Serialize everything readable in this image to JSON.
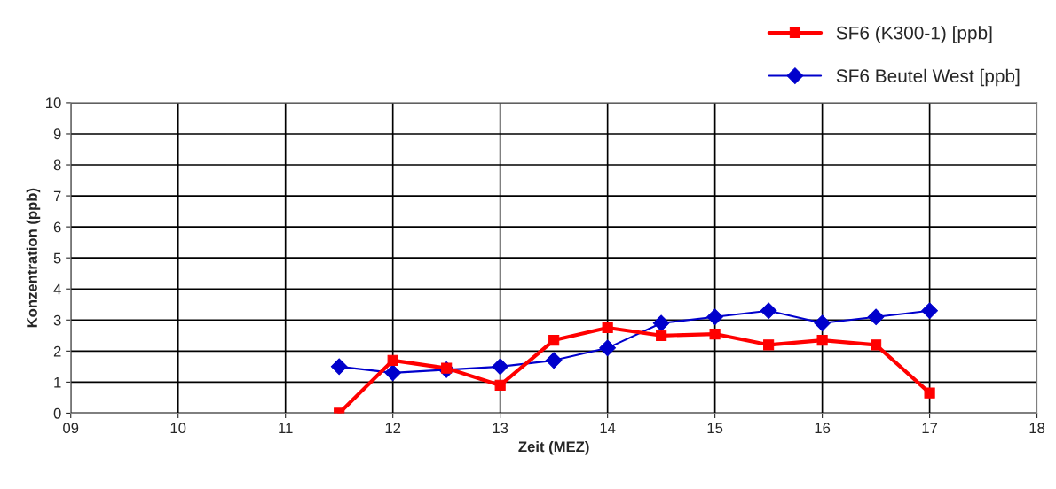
{
  "chart_data": {
    "type": "line",
    "xlabel": "Zeit (MEZ)",
    "ylabel": "Konzentration (ppb)",
    "x": [
      11.5,
      12,
      12.5,
      13,
      13.5,
      14,
      14.5,
      15,
      15.5,
      16,
      16.5,
      17
    ],
    "series": [
      {
        "name": "SF6 (K300-1) [ppb]",
        "color": "#ff0000",
        "marker": "square",
        "values": [
          0,
          1.7,
          1.45,
          0.9,
          2.35,
          2.75,
          2.5,
          2.55,
          2.2,
          2.35,
          2.2,
          0.65
        ]
      },
      {
        "name": "SF6 Beutel West [ppb]",
        "color": "#0000cc",
        "marker": "diamond",
        "values": [
          1.5,
          1.3,
          1.4,
          1.5,
          1.7,
          2.1,
          2.9,
          3.1,
          3.3,
          2.9,
          3.1,
          3.3
        ]
      }
    ],
    "xlim": [
      9,
      18
    ],
    "xticks": [
      {
        "value": 9,
        "label": "09"
      },
      10,
      11,
      12,
      13,
      14,
      15,
      16,
      17,
      18
    ],
    "ylim": [
      0,
      10
    ],
    "yticks": [
      0,
      1,
      2,
      3,
      4,
      5,
      6,
      7,
      8,
      9,
      10
    ],
    "grid": true,
    "legend": "top right",
    "line_style": "solid"
  }
}
